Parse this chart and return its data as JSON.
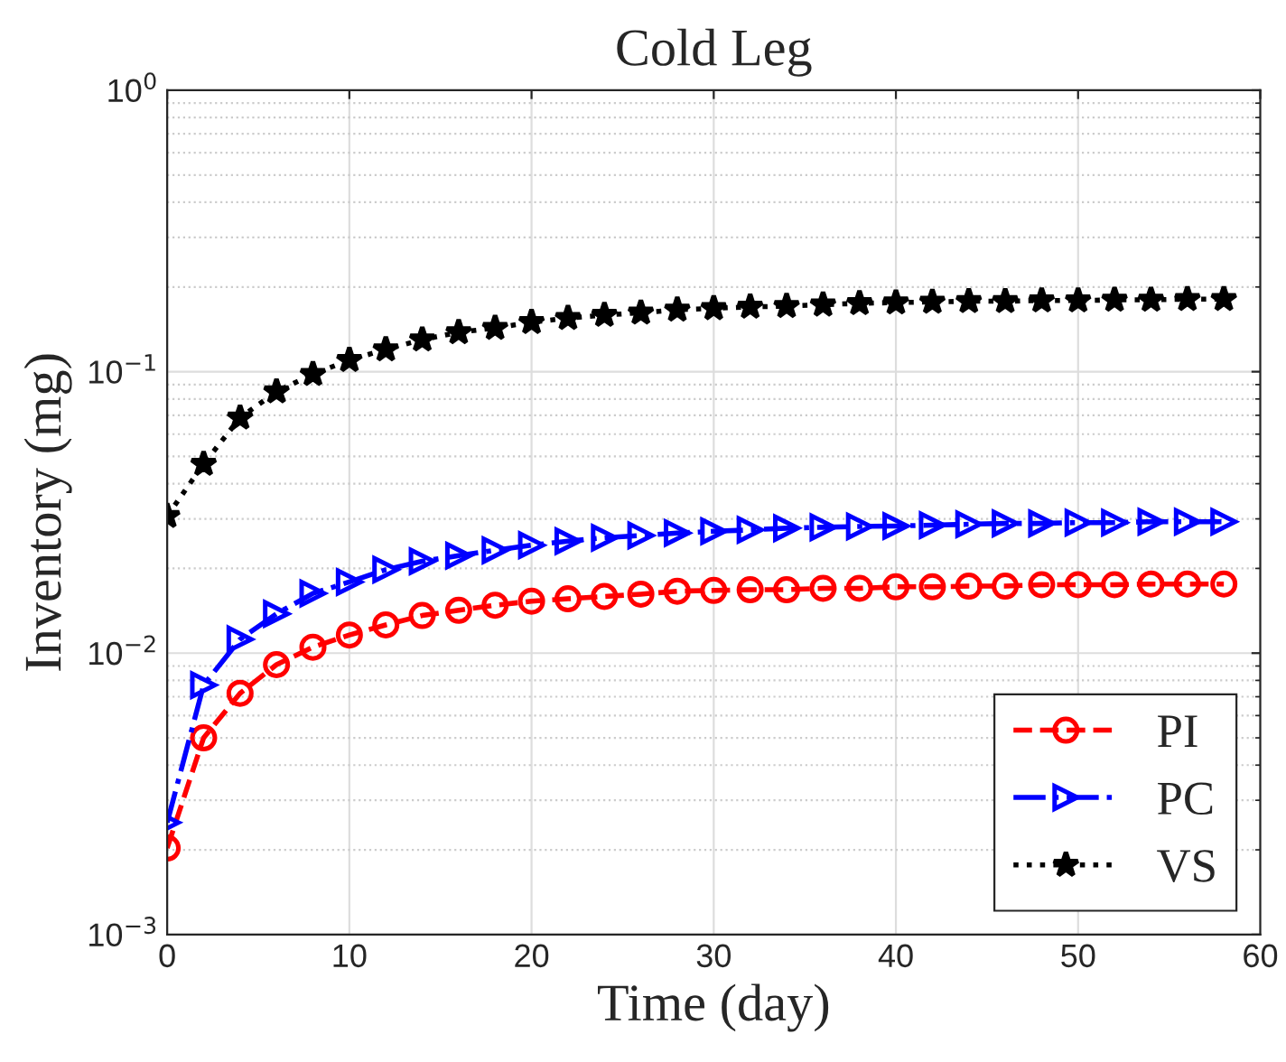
{
  "chart_data": {
    "type": "line",
    "title": "Cold Leg",
    "xlabel": "Time (day)",
    "ylabel": "Inventory (mg)",
    "x": [
      0,
      2,
      4,
      6,
      8,
      10,
      12,
      14,
      16,
      18,
      20,
      22,
      24,
      26,
      28,
      30,
      32,
      34,
      36,
      38,
      40,
      42,
      44,
      46,
      48,
      50,
      52,
      54,
      56,
      58
    ],
    "series": [
      {
        "name": "PI",
        "color": "#ff0000",
        "marker": "circle",
        "line_style": "dashed",
        "values": [
          0.00203,
          0.005,
          0.0072,
          0.0091,
          0.0105,
          0.0116,
          0.0126,
          0.0136,
          0.0142,
          0.0148,
          0.0153,
          0.0156,
          0.0159,
          0.0162,
          0.0166,
          0.0167,
          0.0168,
          0.0168,
          0.017,
          0.017,
          0.0172,
          0.0172,
          0.0173,
          0.0173,
          0.0175,
          0.0175,
          0.0175,
          0.0176,
          0.0176,
          0.0176
        ]
      },
      {
        "name": "PC",
        "color": "#0000ff",
        "marker": "triangle",
        "line_style": "dashdot",
        "values": [
          0.0025,
          0.0077,
          0.0112,
          0.0138,
          0.0163,
          0.0179,
          0.0198,
          0.0212,
          0.0222,
          0.0232,
          0.0242,
          0.025,
          0.0257,
          0.0262,
          0.0267,
          0.0271,
          0.0274,
          0.0278,
          0.028,
          0.0282,
          0.0283,
          0.0285,
          0.0287,
          0.0289,
          0.0289,
          0.0291,
          0.0291,
          0.0293,
          0.0293,
          0.0293
        ]
      },
      {
        "name": "VS",
        "color": "#000000",
        "marker": "star",
        "line_style": "dotted",
        "values": [
          0.0307,
          0.047,
          0.0686,
          0.085,
          0.098,
          0.11,
          0.12,
          0.13,
          0.138,
          0.143,
          0.15,
          0.155,
          0.159,
          0.162,
          0.166,
          0.168,
          0.17,
          0.171,
          0.173,
          0.175,
          0.176,
          0.177,
          0.178,
          0.178,
          0.179,
          0.179,
          0.18,
          0.18,
          0.181,
          0.181
        ]
      }
    ],
    "log": "y",
    "xlim": [
      0,
      60
    ],
    "xticks": [
      0,
      10,
      20,
      30,
      40,
      50,
      60
    ],
    "ylim": [
      0.001,
      1
    ],
    "yticks": [
      {
        "value": 0.001,
        "label": "10$^{−3}$"
      },
      {
        "value": 0.01,
        "label": "10$^{−2}$"
      },
      {
        "value": 0.1,
        "label": "10$^{−1}$"
      },
      {
        "value": 1,
        "label": "10$^{0}$"
      }
    ],
    "grid": true,
    "legend": "lower right"
  }
}
